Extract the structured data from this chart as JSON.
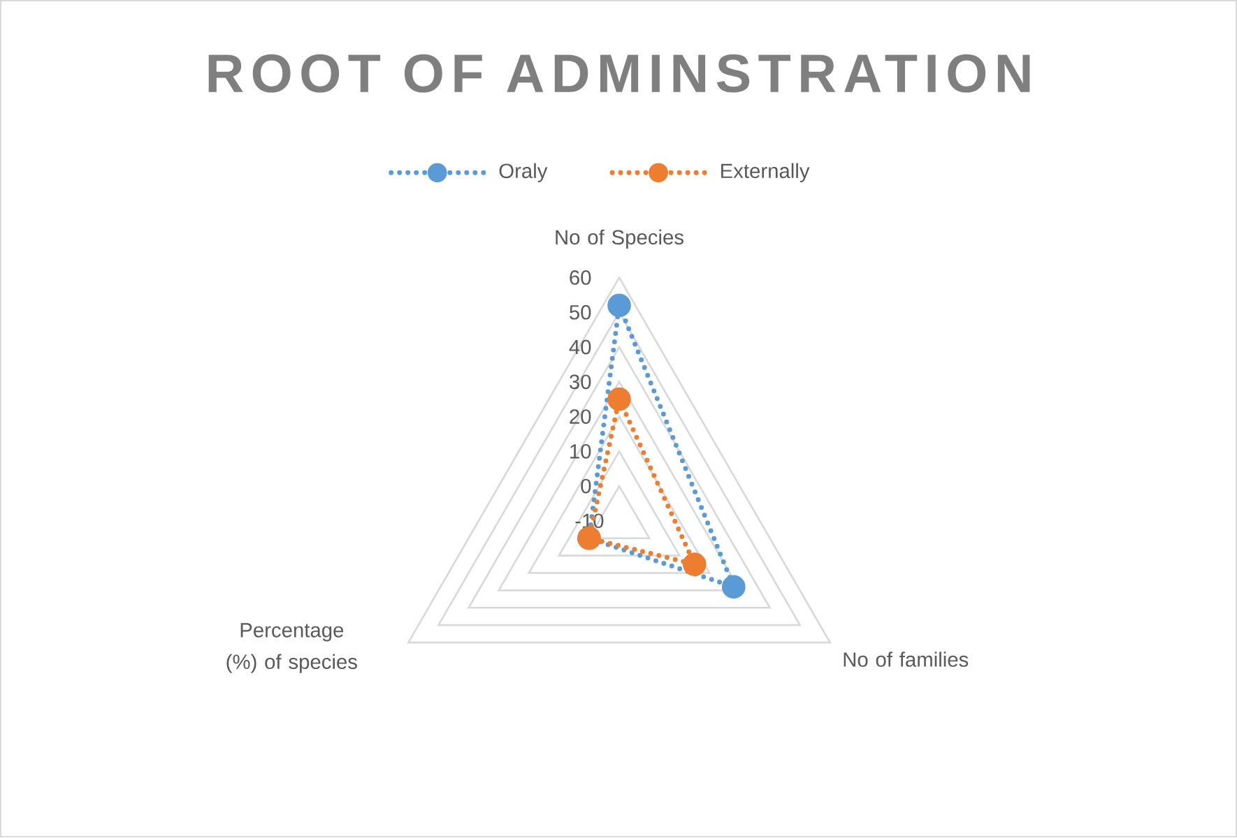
{
  "chart_data": {
    "type": "radar",
    "title": "ROOT OF ADMINSTRATION",
    "categories": [
      "No of Species",
      "No of families",
      "Percentage (%) of species"
    ],
    "ylim": [
      -10,
      60
    ],
    "yticks": [
      -10,
      0,
      10,
      20,
      30,
      40,
      50,
      60
    ],
    "series": [
      {
        "name": "Oraly",
        "color": "#5b9bd5",
        "values": [
          52,
          28,
          0
        ]
      },
      {
        "name": "Externally",
        "color": "#ed7d31",
        "values": [
          25,
          15,
          0
        ]
      }
    ],
    "legend": "top",
    "grid": true,
    "marker": "circle",
    "line_style": "dotted"
  }
}
